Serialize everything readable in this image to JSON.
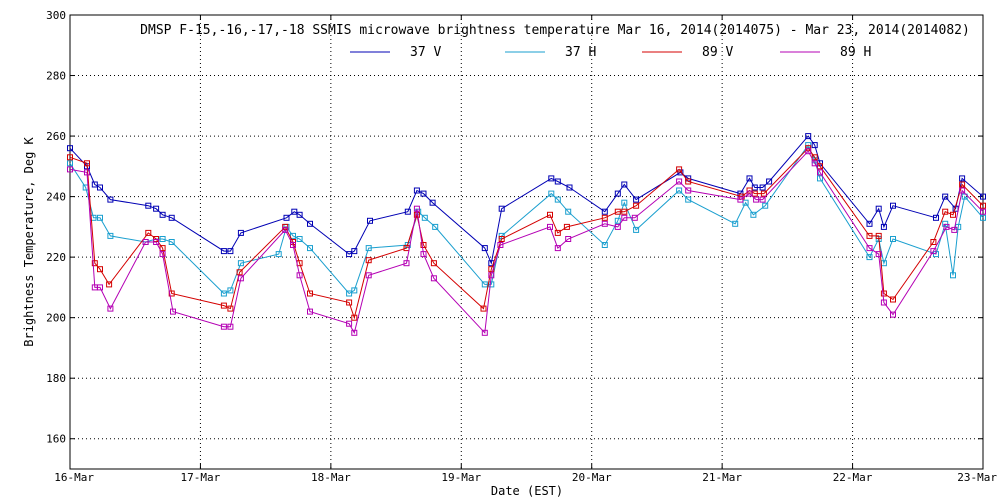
{
  "chart_data": {
    "type": "line",
    "title": "DMSP F-15,-16,-17,-18 SSMIS microwave brightness temperature Mar 16, 2014(2014075) - Mar 23, 2014(2014082)",
    "xlabel": "Date (EST)",
    "ylabel": "Brightness Temperature, Deg K",
    "xlim": [
      0,
      7
    ],
    "ylim": [
      150,
      300
    ],
    "x_ticks": [
      {
        "value": 0,
        "label": "16-Mar"
      },
      {
        "value": 1,
        "label": "17-Mar"
      },
      {
        "value": 2,
        "label": "18-Mar"
      },
      {
        "value": 3,
        "label": "19-Mar"
      },
      {
        "value": 4,
        "label": "20-Mar"
      },
      {
        "value": 5,
        "label": "21-Mar"
      },
      {
        "value": 6,
        "label": "22-Mar"
      },
      {
        "value": 7,
        "label": "23-Mar"
      }
    ],
    "y_ticks": [
      {
        "value": 160,
        "label": "160"
      },
      {
        "value": 180,
        "label": "180"
      },
      {
        "value": 200,
        "label": "200"
      },
      {
        "value": 220,
        "label": "220"
      },
      {
        "value": 240,
        "label": "240"
      },
      {
        "value": 260,
        "label": "260"
      },
      {
        "value": 280,
        "label": "280"
      },
      {
        "value": 300,
        "label": "300"
      }
    ],
    "grid": true,
    "legend_position": "top-center",
    "series": [
      {
        "name": "37 V",
        "color": "#0000b4",
        "points": [
          [
            0,
            256
          ],
          [
            0.13,
            250
          ],
          [
            0.19,
            244
          ],
          [
            0.23,
            243
          ],
          [
            0.31,
            239
          ],
          [
            0.6,
            237
          ],
          [
            0.66,
            236
          ],
          [
            0.71,
            234
          ],
          [
            0.78,
            233
          ],
          [
            1.18,
            222
          ],
          [
            1.23,
            222
          ],
          [
            1.31,
            228
          ],
          [
            1.66,
            233
          ],
          [
            1.72,
            235
          ],
          [
            1.76,
            234
          ],
          [
            1.84,
            231
          ],
          [
            2.14,
            221
          ],
          [
            2.18,
            222
          ],
          [
            2.3,
            232
          ],
          [
            2.59,
            235
          ],
          [
            2.66,
            242
          ],
          [
            2.71,
            241
          ],
          [
            2.78,
            238
          ],
          [
            3.18,
            223
          ],
          [
            3.23,
            218
          ],
          [
            3.31,
            236
          ],
          [
            3.69,
            246
          ],
          [
            3.74,
            245
          ],
          [
            3.83,
            243
          ],
          [
            4.1,
            235
          ],
          [
            4.2,
            241
          ],
          [
            4.25,
            244
          ],
          [
            4.34,
            239
          ],
          [
            4.68,
            248
          ],
          [
            4.74,
            246
          ],
          [
            5.14,
            241
          ],
          [
            5.21,
            246
          ],
          [
            5.25,
            243
          ],
          [
            5.31,
            243
          ],
          [
            5.36,
            245
          ],
          [
            5.66,
            260
          ],
          [
            5.71,
            257
          ],
          [
            5.75,
            251
          ],
          [
            6.13,
            231
          ],
          [
            6.2,
            236
          ],
          [
            6.24,
            230
          ],
          [
            6.31,
            237
          ],
          [
            6.64,
            233
          ],
          [
            6.71,
            240
          ],
          [
            6.79,
            236
          ],
          [
            6.84,
            246
          ],
          [
            7,
            240
          ]
        ]
      },
      {
        "name": "37 H",
        "color": "#1a9fcf",
        "points": [
          [
            0,
            251
          ],
          [
            0.12,
            243
          ],
          [
            0.18,
            233
          ],
          [
            0.23,
            233
          ],
          [
            0.31,
            227
          ],
          [
            0.58,
            225
          ],
          [
            0.66,
            226
          ],
          [
            0.71,
            226
          ],
          [
            0.78,
            225
          ],
          [
            1.18,
            208
          ],
          [
            1.23,
            209
          ],
          [
            1.31,
            218
          ],
          [
            1.6,
            221
          ],
          [
            1.66,
            230
          ],
          [
            1.71,
            227
          ],
          [
            1.76,
            226
          ],
          [
            1.84,
            223
          ],
          [
            2.14,
            208
          ],
          [
            2.18,
            209
          ],
          [
            2.29,
            223
          ],
          [
            2.59,
            224
          ],
          [
            2.67,
            235
          ],
          [
            2.72,
            233
          ],
          [
            2.8,
            230
          ],
          [
            3.18,
            211
          ],
          [
            3.23,
            211
          ],
          [
            3.31,
            227
          ],
          [
            3.69,
            241
          ],
          [
            3.74,
            239
          ],
          [
            3.82,
            235
          ],
          [
            4.1,
            224
          ],
          [
            4.2,
            232
          ],
          [
            4.25,
            238
          ],
          [
            4.34,
            229
          ],
          [
            4.67,
            242
          ],
          [
            4.74,
            239
          ],
          [
            5.1,
            231
          ],
          [
            5.18,
            238
          ],
          [
            5.24,
            234
          ],
          [
            5.33,
            237
          ],
          [
            5.66,
            257
          ],
          [
            5.71,
            252
          ],
          [
            5.75,
            246
          ],
          [
            6.13,
            220
          ],
          [
            6.2,
            226
          ],
          [
            6.24,
            218
          ],
          [
            6.31,
            226
          ],
          [
            6.64,
            221
          ],
          [
            6.71,
            231
          ],
          [
            6.77,
            214
          ],
          [
            6.81,
            230
          ],
          [
            6.86,
            240
          ],
          [
            7,
            233
          ]
        ]
      },
      {
        "name": "89 V",
        "color": "#d40000",
        "points": [
          [
            0,
            253
          ],
          [
            0.13,
            251
          ],
          [
            0.19,
            218
          ],
          [
            0.23,
            216
          ],
          [
            0.3,
            211
          ],
          [
            0.6,
            228
          ],
          [
            0.66,
            226
          ],
          [
            0.71,
            223
          ],
          [
            0.78,
            208
          ],
          [
            1.18,
            204
          ],
          [
            1.23,
            203
          ],
          [
            1.3,
            215
          ],
          [
            1.65,
            230
          ],
          [
            1.71,
            225
          ],
          [
            1.76,
            218
          ],
          [
            1.84,
            208
          ],
          [
            2.14,
            205
          ],
          [
            2.18,
            200
          ],
          [
            2.29,
            219
          ],
          [
            2.58,
            223
          ],
          [
            2.66,
            234
          ],
          [
            2.71,
            224
          ],
          [
            2.79,
            218
          ],
          [
            3.17,
            203
          ],
          [
            3.23,
            216
          ],
          [
            3.31,
            226
          ],
          [
            3.68,
            234
          ],
          [
            3.74,
            228
          ],
          [
            3.81,
            230
          ],
          [
            4.1,
            233
          ],
          [
            4.2,
            235
          ],
          [
            4.25,
            235
          ],
          [
            4.34,
            237
          ],
          [
            4.67,
            249
          ],
          [
            4.74,
            245
          ],
          [
            5.15,
            240
          ],
          [
            5.21,
            242
          ],
          [
            5.25,
            241
          ],
          [
            5.32,
            241
          ],
          [
            5.66,
            256
          ],
          [
            5.71,
            253
          ],
          [
            5.75,
            250
          ],
          [
            6.13,
            227
          ],
          [
            6.2,
            227
          ],
          [
            6.24,
            208
          ],
          [
            6.31,
            206
          ],
          [
            6.62,
            225
          ],
          [
            6.71,
            235
          ],
          [
            6.77,
            234
          ],
          [
            6.84,
            244
          ],
          [
            7,
            237
          ]
        ]
      },
      {
        "name": "89 H",
        "color": "#b400b4",
        "points": [
          [
            0,
            249
          ],
          [
            0.13,
            248
          ],
          [
            0.19,
            210
          ],
          [
            0.23,
            210
          ],
          [
            0.31,
            203
          ],
          [
            0.58,
            225
          ],
          [
            0.66,
            225
          ],
          [
            0.71,
            221
          ],
          [
            0.79,
            202
          ],
          [
            1.18,
            197
          ],
          [
            1.23,
            197
          ],
          [
            1.31,
            213
          ],
          [
            1.65,
            229
          ],
          [
            1.71,
            224
          ],
          [
            1.76,
            214
          ],
          [
            1.84,
            202
          ],
          [
            2.14,
            198
          ],
          [
            2.18,
            195
          ],
          [
            2.29,
            214
          ],
          [
            2.58,
            218
          ],
          [
            2.66,
            236
          ],
          [
            2.71,
            221
          ],
          [
            2.79,
            213
          ],
          [
            3.18,
            195
          ],
          [
            3.23,
            214
          ],
          [
            3.3,
            224
          ],
          [
            3.68,
            230
          ],
          [
            3.74,
            223
          ],
          [
            3.82,
            226
          ],
          [
            4.1,
            231
          ],
          [
            4.2,
            230
          ],
          [
            4.25,
            233
          ],
          [
            4.33,
            233
          ],
          [
            4.67,
            245
          ],
          [
            4.74,
            242
          ],
          [
            5.14,
            239
          ],
          [
            5.21,
            241
          ],
          [
            5.26,
            239
          ],
          [
            5.31,
            239
          ],
          [
            5.66,
            255
          ],
          [
            5.71,
            251
          ],
          [
            5.75,
            248
          ],
          [
            6.13,
            223
          ],
          [
            6.2,
            221
          ],
          [
            6.24,
            205
          ],
          [
            6.31,
            201
          ],
          [
            6.62,
            222
          ],
          [
            6.72,
            230
          ],
          [
            6.78,
            229
          ],
          [
            6.84,
            242
          ],
          [
            7,
            235
          ]
        ]
      }
    ]
  }
}
